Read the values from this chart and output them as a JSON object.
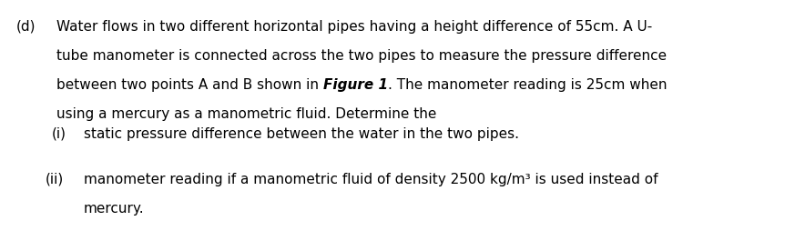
{
  "background_color": "#ffffff",
  "text_color": "#000000",
  "font_size": 11.0,
  "label_d": "(d)",
  "line1": "Water flows in two different horizontal pipes having a height difference of 55cm. A U-",
  "line2": "tube manometer is connected across the two pipes to measure the pressure difference",
  "line3_normal1": "between two points A and B shown in ",
  "line3_bold": "Figure 1",
  "line3_normal2": ". The manometer reading is 25cm when",
  "line4": "using a mercury as a manometric fluid. Determine the",
  "label_i": "(i)",
  "line_i": "static pressure difference between the water in the two pipes.",
  "label_ii": "(ii)",
  "line_ii1": "manometer reading if a manometric fluid of density 2500 kg/m³ is used instead of",
  "line_ii2": "mercury."
}
